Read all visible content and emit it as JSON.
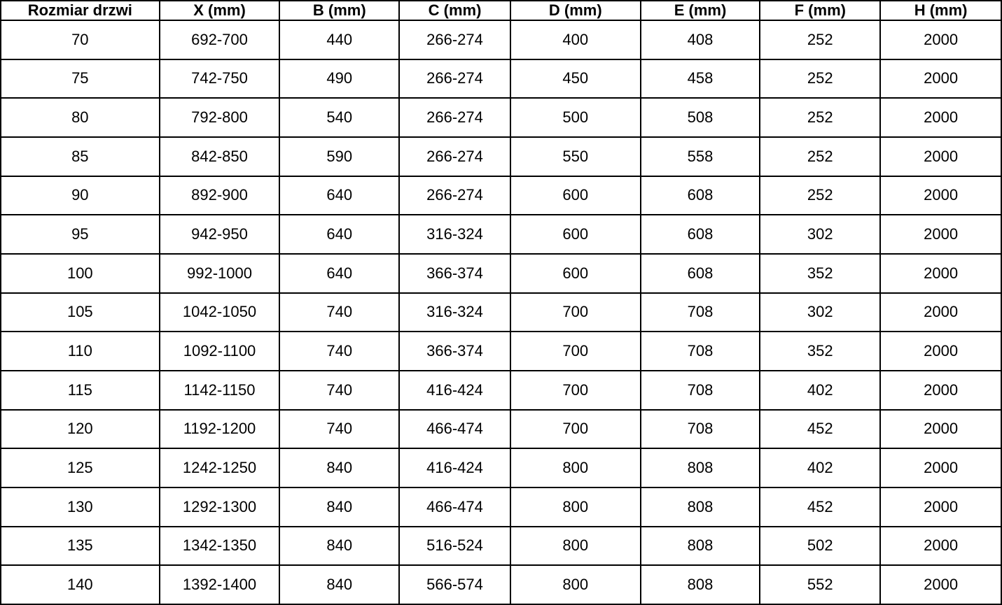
{
  "colors": {
    "background": "#ffffff",
    "border": "#000000",
    "text": "#000000"
  },
  "chart_data": {
    "type": "table",
    "title": "",
    "columns": [
      "Rozmiar drzwi",
      "X (mm)",
      "B (mm)",
      "C (mm)",
      "D (mm)",
      "E (mm)",
      "F (mm)",
      "H (mm)"
    ],
    "rows": [
      [
        "70",
        "692-700",
        "440",
        "266-274",
        "400",
        "408",
        "252",
        "2000"
      ],
      [
        "75",
        "742-750",
        "490",
        "266-274",
        "450",
        "458",
        "252",
        "2000"
      ],
      [
        "80",
        "792-800",
        "540",
        "266-274",
        "500",
        "508",
        "252",
        "2000"
      ],
      [
        "85",
        "842-850",
        "590",
        "266-274",
        "550",
        "558",
        "252",
        "2000"
      ],
      [
        "90",
        "892-900",
        "640",
        "266-274",
        "600",
        "608",
        "252",
        "2000"
      ],
      [
        "95",
        "942-950",
        "640",
        "316-324",
        "600",
        "608",
        "302",
        "2000"
      ],
      [
        "100",
        "992-1000",
        "640",
        "366-374",
        "600",
        "608",
        "352",
        "2000"
      ],
      [
        "105",
        "1042-1050",
        "740",
        "316-324",
        "700",
        "708",
        "302",
        "2000"
      ],
      [
        "110",
        "1092-1100",
        "740",
        "366-374",
        "700",
        "708",
        "352",
        "2000"
      ],
      [
        "115",
        "1142-1150",
        "740",
        "416-424",
        "700",
        "708",
        "402",
        "2000"
      ],
      [
        "120",
        "1192-1200",
        "740",
        "466-474",
        "700",
        "708",
        "452",
        "2000"
      ],
      [
        "125",
        "1242-1250",
        "840",
        "416-424",
        "800",
        "808",
        "402",
        "2000"
      ],
      [
        "130",
        "1292-1300",
        "840",
        "466-474",
        "800",
        "808",
        "452",
        "2000"
      ],
      [
        "135",
        "1342-1350",
        "840",
        "516-524",
        "800",
        "808",
        "502",
        "2000"
      ],
      [
        "140",
        "1392-1400",
        "840",
        "566-574",
        "800",
        "808",
        "552",
        "2000"
      ]
    ]
  }
}
